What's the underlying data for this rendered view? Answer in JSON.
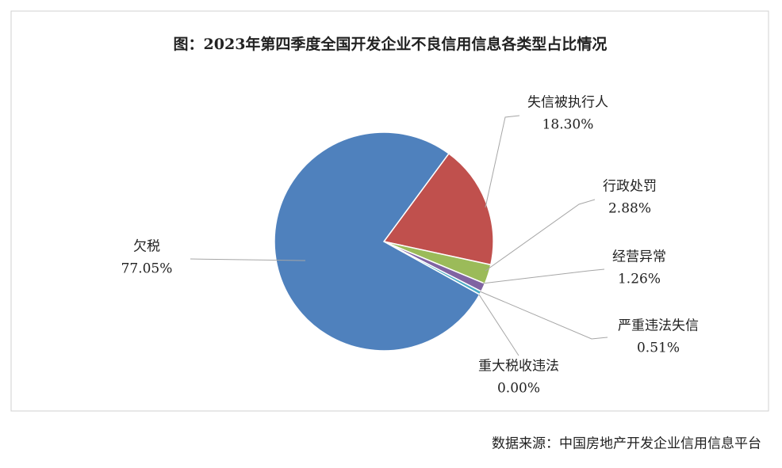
{
  "chart_data": {
    "type": "pie",
    "title": "图：2023年第四季度全国开发企业不良信用信息各类型占比情况",
    "categories": [
      "失信被执行人",
      "行政处罚",
      "经营异常",
      "严重违法失信",
      "重大税收违法",
      "欠税"
    ],
    "values": [
      18.3,
      2.88,
      1.26,
      0.51,
      0.0,
      77.05
    ],
    "value_labels": [
      "18.30%",
      "2.88%",
      "1.26%",
      "0.51%",
      "0.00%",
      "77.05%"
    ],
    "colors": [
      "#c0504d",
      "#9bbb59",
      "#8064a2",
      "#4bacc6",
      "#f79646",
      "#4f81bd"
    ],
    "source": "数据来源：中国房地产开发企业信用信息平台"
  }
}
